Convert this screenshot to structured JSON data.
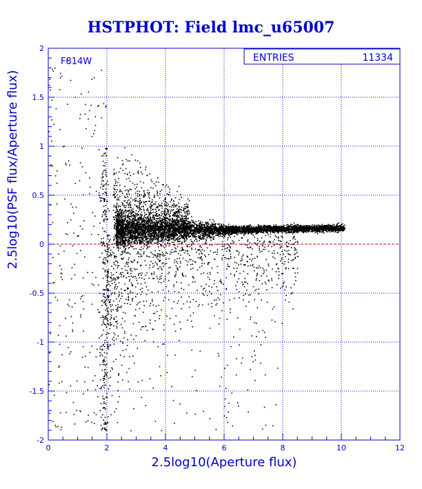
{
  "chart_data": {
    "type": "scatter",
    "title": "HSTPHOT: Field lmc_u65007",
    "xlabel": "2.5log10(Aperture flux)",
    "ylabel": "2.5log10(PSF flux/Aperture flux)",
    "xlim": [
      0,
      12
    ],
    "ylim": [
      -2,
      2
    ],
    "x_ticks": [
      "0",
      "2",
      "4",
      "6",
      "8",
      "10",
      "12"
    ],
    "y_ticks": [
      "-2",
      "-1.5",
      "-1",
      "-0.5",
      "0",
      "0.5",
      "1",
      "1.5",
      "2"
    ],
    "grid": true,
    "annotation": "F814W",
    "stats": {
      "label": "ENTRIES",
      "value": "11334"
    },
    "reference_line": {
      "y": 0,
      "color": "#cc0000",
      "style": "dashed"
    },
    "ridge": [
      {
        "x": 2.5,
        "y": 0.14
      },
      {
        "x": 3.5,
        "y": 0.15
      },
      {
        "x": 4.5,
        "y": 0.15
      },
      {
        "x": 5.5,
        "y": 0.15
      },
      {
        "x": 6.5,
        "y": 0.15
      },
      {
        "x": 7.5,
        "y": 0.16
      },
      {
        "x": 8.5,
        "y": 0.16
      },
      {
        "x": 9.5,
        "y": 0.17
      },
      {
        "x": 10.0,
        "y": 0.17
      }
    ],
    "colors": {
      "axes": "#0000cc",
      "points": "#000000",
      "reference": "#cc0000"
    }
  }
}
